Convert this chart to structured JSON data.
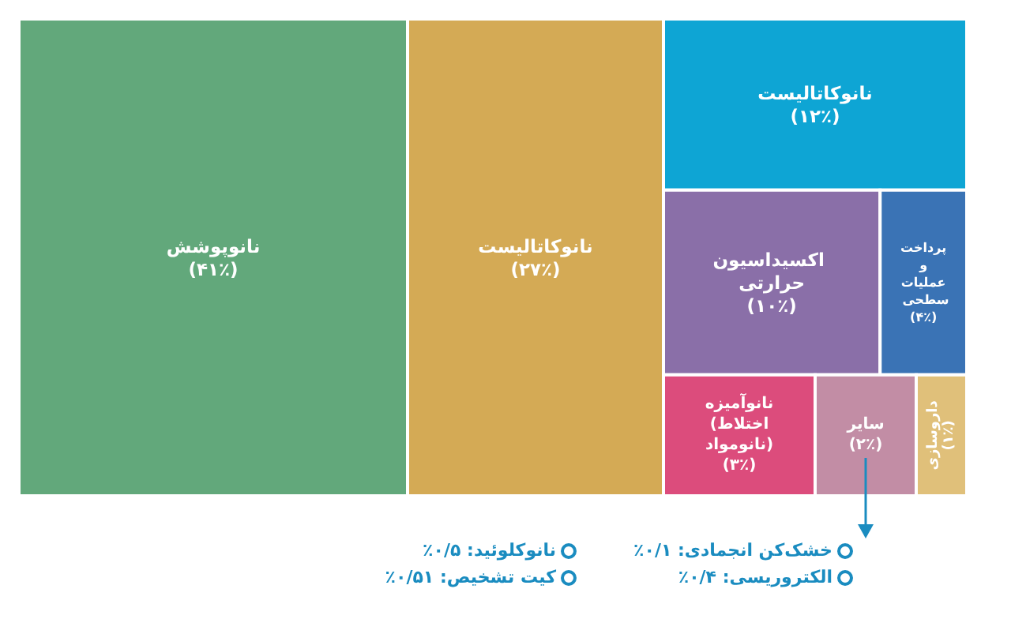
{
  "chart_data": {
    "type": "other",
    "categories": [
      "نانوپوشش",
      "نانوکاتالیست",
      "نانوکاتالیست",
      "اکسیداسیون حرارتی",
      "پرداخت و عملیات سطحی",
      "نانوآمیزه (اختلاط نانومواد)",
      "سایر",
      "داروسازی"
    ],
    "values": [
      41,
      27,
      12,
      10,
      4,
      3,
      2,
      1
    ],
    "value_labels": [
      "(۴۱٪)",
      "(۲۷٪)",
      "(۱۲٪)",
      "(۱۰٪)",
      "(۴٪)",
      "(۳٪)",
      "(۲٪)",
      "(۱٪)"
    ],
    "colors": [
      "#62a87b",
      "#d4aa55",
      "#0ea5d4",
      "#8a6fa8",
      "#3a73b5",
      "#dc4c7c",
      "#c28da5",
      "#e0c07a"
    ],
    "annotations": [
      "خشک‌کن انجمادی: ۰/۱٪",
      "الکتروریسی: ۰/۴٪",
      "نانوکلوئید: ۰/۵٪",
      "کیت تشخیص: ۰/۵۱٪"
    ]
  }
}
